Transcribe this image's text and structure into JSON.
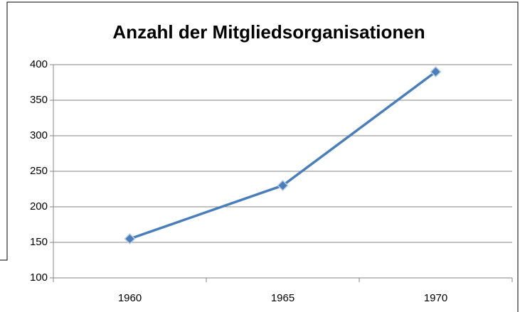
{
  "chart_data": {
    "type": "line",
    "title": "Anzahl der Mitgliedsorganisationen",
    "categories": [
      "1960",
      "1965",
      "1970"
    ],
    "series": [
      {
        "name": "Anzahl der Mitgliedsorganisationen",
        "color": "#4a7ebb",
        "values": [
          155,
          230,
          390
        ]
      }
    ],
    "ylim": [
      100,
      400
    ],
    "yticks": [
      100,
      150,
      200,
      250,
      300,
      350,
      400
    ],
    "grid": true
  }
}
